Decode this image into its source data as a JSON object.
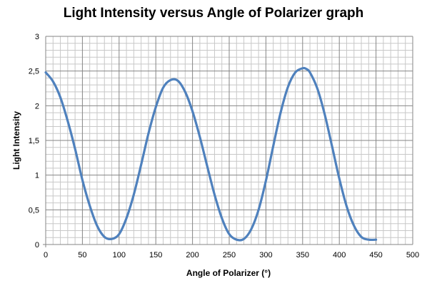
{
  "chart_data": {
    "type": "line",
    "title": "Light Intensity versus Angle of Polarizer graph",
    "xlabel": "Angle of Polarizer (°)",
    "ylabel": "Light Intensity",
    "xlim": [
      0,
      500
    ],
    "ylim": [
      0,
      3
    ],
    "x_ticks": [
      "0",
      "50",
      "100",
      "150",
      "200",
      "250",
      "300",
      "350",
      "400",
      "450",
      "500"
    ],
    "y_ticks": [
      "0",
      "0,5",
      "1",
      "1,5",
      "2",
      "2,5",
      "3"
    ],
    "grid": true,
    "legend": "none",
    "line_color": "#4f81bd",
    "series": [
      {
        "x": [
          0,
          10,
          20,
          30,
          40,
          50,
          60,
          70,
          80,
          90,
          100,
          110,
          120,
          130,
          140,
          150,
          160,
          170,
          180,
          190,
          200,
          210,
          220,
          230,
          240,
          250,
          260,
          270,
          280,
          290,
          300,
          310,
          320,
          330,
          340,
          350,
          355,
          360,
          370,
          380,
          390,
          400,
          410,
          420,
          430,
          440,
          450
        ],
        "y": [
          2.48,
          2.35,
          2.12,
          1.78,
          1.38,
          0.93,
          0.56,
          0.27,
          0.11,
          0.08,
          0.15,
          0.38,
          0.72,
          1.15,
          1.6,
          1.98,
          2.26,
          2.37,
          2.36,
          2.2,
          1.92,
          1.55,
          1.13,
          0.72,
          0.38,
          0.15,
          0.07,
          0.08,
          0.22,
          0.5,
          0.92,
          1.42,
          1.9,
          2.27,
          2.48,
          2.54,
          2.53,
          2.48,
          2.25,
          1.88,
          1.42,
          0.95,
          0.55,
          0.27,
          0.11,
          0.07,
          0.07
        ]
      }
    ]
  }
}
